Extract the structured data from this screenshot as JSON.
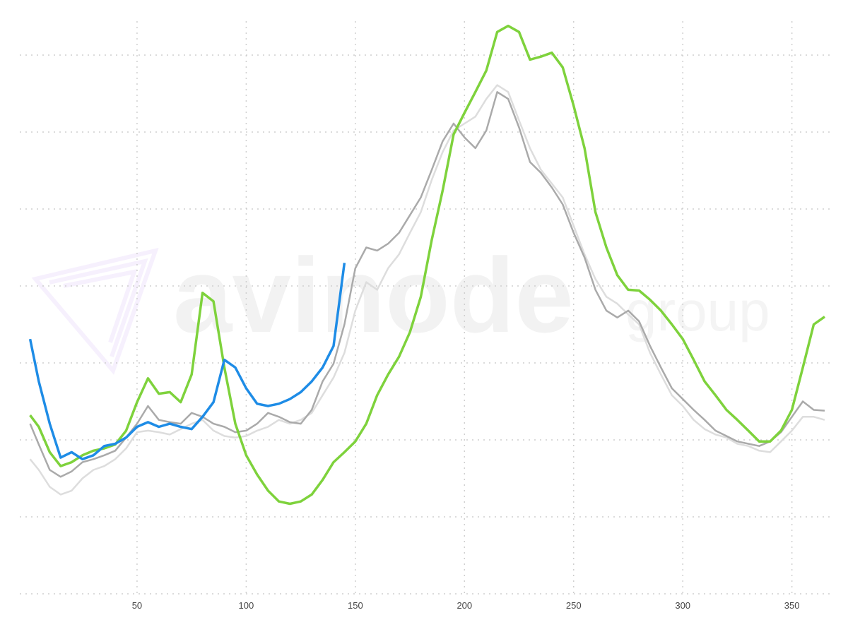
{
  "chart_data": {
    "type": "line",
    "watermark": {
      "brand": "avinode",
      "suffix": "group"
    },
    "x": [
      1,
      5,
      10,
      15,
      20,
      25,
      30,
      35,
      40,
      45,
      50,
      55,
      60,
      65,
      70,
      75,
      80,
      85,
      90,
      95,
      100,
      105,
      110,
      115,
      120,
      125,
      130,
      135,
      140,
      145,
      150,
      155,
      160,
      165,
      170,
      175,
      180,
      185,
      190,
      195,
      200,
      205,
      210,
      215,
      220,
      225,
      230,
      235,
      240,
      245,
      250,
      255,
      260,
      265,
      270,
      275,
      280,
      285,
      290,
      295,
      300,
      305,
      310,
      315,
      320,
      325,
      330,
      335,
      340,
      345,
      350,
      355,
      360,
      365
    ],
    "xlim": [
      0,
      368
    ],
    "xticks": [
      50,
      100,
      150,
      200,
      250,
      300,
      350
    ],
    "ylim": [
      0,
      7.5
    ],
    "ygrid": [
      0,
      1,
      2,
      3,
      4,
      5,
      6,
      7
    ],
    "grid": true,
    "series": [
      {
        "color": "#dddddd",
        "values": [
          1.75,
          1.61,
          1.39,
          1.29,
          1.34,
          1.5,
          1.61,
          1.66,
          1.75,
          1.89,
          2.1,
          2.12,
          2.1,
          2.07,
          2.14,
          2.21,
          2.26,
          2.12,
          2.05,
          2.03,
          2.05,
          2.12,
          2.17,
          2.26,
          2.21,
          2.26,
          2.35,
          2.58,
          2.81,
          3.13,
          3.68,
          4.05,
          3.95,
          4.23,
          4.41,
          4.69,
          4.96,
          5.38,
          5.74,
          6.02,
          6.11,
          6.2,
          6.43,
          6.61,
          6.52,
          6.15,
          5.79,
          5.51,
          5.33,
          5.15,
          4.78,
          4.41,
          4.09,
          3.86,
          3.77,
          3.63,
          3.5,
          3.13,
          2.85,
          2.58,
          2.44,
          2.26,
          2.14,
          2.07,
          2.03,
          1.95,
          1.92,
          1.86,
          1.84,
          1.98,
          2.12,
          2.3,
          2.3,
          2.26
        ]
      },
      {
        "color": "#aaaaaa",
        "values": [
          2.21,
          1.94,
          1.61,
          1.52,
          1.59,
          1.71,
          1.75,
          1.8,
          1.86,
          2.03,
          2.21,
          2.44,
          2.26,
          2.23,
          2.21,
          2.35,
          2.3,
          2.21,
          2.17,
          2.1,
          2.12,
          2.21,
          2.35,
          2.3,
          2.23,
          2.21,
          2.39,
          2.76,
          2.99,
          3.5,
          4.23,
          4.5,
          4.46,
          4.55,
          4.69,
          4.92,
          5.15,
          5.51,
          5.88,
          6.11,
          5.93,
          5.79,
          6.02,
          6.52,
          6.43,
          6.06,
          5.61,
          5.47,
          5.28,
          5.06,
          4.69,
          4.37,
          3.95,
          3.68,
          3.59,
          3.68,
          3.54,
          3.22,
          2.94,
          2.67,
          2.53,
          2.39,
          2.26,
          2.12,
          2.05,
          1.98,
          1.95,
          1.92,
          1.98,
          2.1,
          2.3,
          2.5,
          2.39,
          2.38
        ]
      },
      {
        "color": "#7ed23c",
        "values": [
          2.32,
          2.17,
          1.84,
          1.66,
          1.71,
          1.8,
          1.86,
          1.89,
          1.94,
          2.12,
          2.49,
          2.8,
          2.6,
          2.62,
          2.49,
          2.85,
          3.91,
          3.8,
          2.94,
          2.21,
          1.8,
          1.55,
          1.34,
          1.2,
          1.17,
          1.2,
          1.29,
          1.48,
          1.71,
          1.84,
          1.98,
          2.21,
          2.58,
          2.85,
          3.08,
          3.4,
          3.86,
          4.6,
          5.24,
          5.97,
          6.25,
          6.52,
          6.8,
          7.3,
          7.38,
          7.3,
          6.94,
          6.98,
          7.03,
          6.84,
          6.34,
          5.79,
          4.96,
          4.5,
          4.14,
          3.95,
          3.94,
          3.82,
          3.68,
          3.5,
          3.31,
          3.04,
          2.76,
          2.58,
          2.39,
          2.26,
          2.12,
          1.98,
          1.98,
          2.12,
          2.39,
          2.94,
          3.5,
          3.6
        ]
      },
      {
        "color": "#1e8ce6",
        "values": [
          3.31,
          2.76,
          2.21,
          1.77,
          1.84,
          1.75,
          1.8,
          1.92,
          1.95,
          2.03,
          2.17,
          2.23,
          2.17,
          2.21,
          2.17,
          2.14,
          2.3,
          2.49,
          3.04,
          2.94,
          2.67,
          2.47,
          2.44,
          2.47,
          2.53,
          2.62,
          2.76,
          2.94,
          3.22,
          4.3,
          null,
          null,
          null,
          null,
          null,
          null,
          null,
          null,
          null,
          null,
          null,
          null,
          null,
          null,
          null,
          null,
          null,
          null,
          null,
          null,
          null,
          null,
          null,
          null,
          null,
          null,
          null,
          null,
          null,
          null,
          null,
          null,
          null,
          null,
          null,
          null,
          null,
          null,
          null,
          null,
          null,
          null,
          null,
          null
        ]
      }
    ]
  }
}
